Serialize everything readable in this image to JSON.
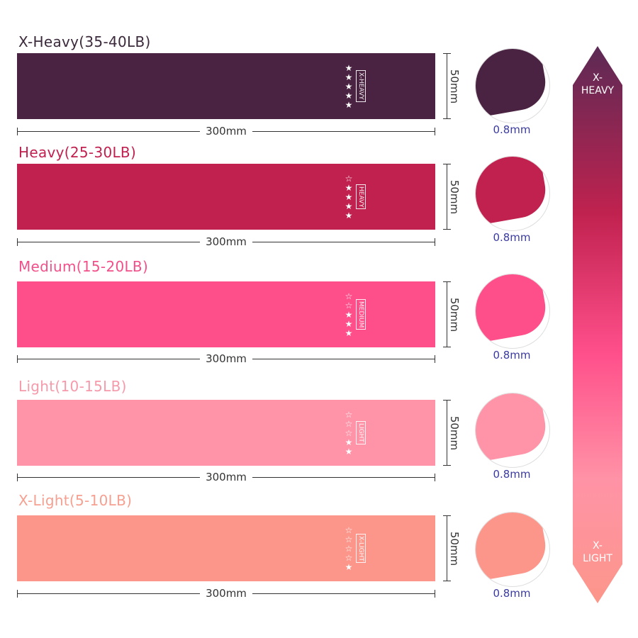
{
  "bands": [
    {
      "title": "X-Heavy(35-40LB)",
      "tag": "X-HEAVY",
      "stars": "★★★★★",
      "color": "#4b2342",
      "title_color": "#3b2a3b",
      "width_label": "300mm",
      "height_label": "50mm",
      "thickness": "0.8mm",
      "rating": 5
    },
    {
      "title": "Heavy(25-30LB)",
      "tag": "HEAVY",
      "stars": "☆★★★★",
      "color": "#c1214f",
      "title_color": "#c1214f",
      "width_label": "300mm",
      "height_label": "50mm",
      "thickness": "0.8mm",
      "rating": 4
    },
    {
      "title": "Medium(15-20LB)",
      "tag": "MEDIUM",
      "stars": "☆☆★★★",
      "color": "#ff4f8a",
      "title_color": "#f2508a",
      "width_label": "300mm",
      "height_label": "50mm",
      "thickness": "0.8mm",
      "rating": 3
    },
    {
      "title": "Light(10-15LB)",
      "tag": "LIGHT",
      "stars": "☆☆☆★★",
      "color": "#ff93a7",
      "title_color": "#f59aab",
      "width_label": "300mm",
      "height_label": "50mm",
      "thickness": "0.8mm",
      "rating": 2
    },
    {
      "title": "X-Light(5-10LB)",
      "tag": "X-LIGHT",
      "stars": "☆☆☆☆★",
      "color": "#fc968b",
      "title_color": "#f5a090",
      "width_label": "300mm",
      "height_label": "50mm",
      "thickness": "0.8mm",
      "rating": 1
    }
  ],
  "scale": {
    "top": "X-\nHEAVY",
    "bottom": "X-\nLIGHT"
  }
}
